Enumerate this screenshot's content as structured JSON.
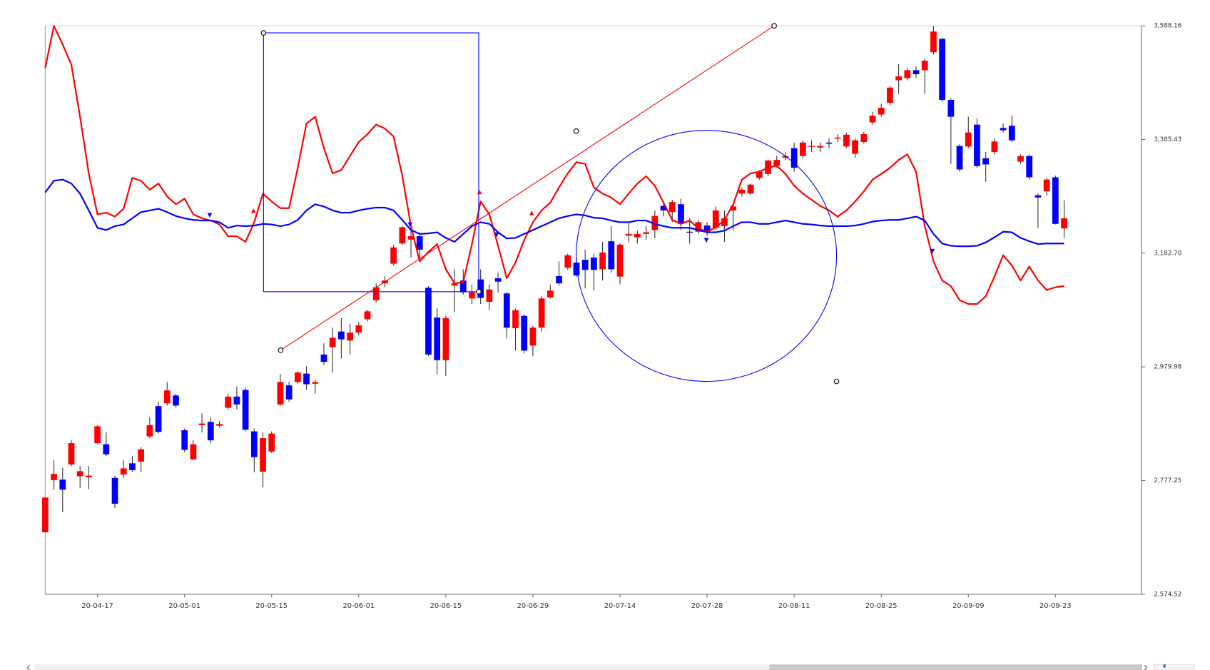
{
  "chart_data": {
    "type": "candlestick",
    "up_color": "#ff0000",
    "down_color": "#0000ff",
    "categories": [
      null,
      null,
      null,
      null,
      null,
      null,
      "20-04-17",
      null,
      null,
      null,
      null,
      null,
      null,
      null,
      null,
      null,
      "20-05-01",
      null,
      null,
      null,
      null,
      null,
      null,
      null,
      null,
      null,
      "20-05-15",
      null,
      null,
      null,
      null,
      null,
      null,
      null,
      null,
      null,
      "20-06-01",
      null,
      null,
      null,
      null,
      null,
      null,
      null,
      null,
      null,
      "20-06-15",
      null,
      null,
      null,
      null,
      null,
      null,
      null,
      null,
      null,
      "20-06-29",
      null,
      null,
      null,
      null,
      null,
      null,
      null,
      null,
      null,
      "20-07-14",
      null,
      null,
      null,
      null,
      null,
      null,
      null,
      null,
      null,
      "20-07-28",
      null,
      null,
      null,
      null,
      null,
      null,
      null,
      null,
      null,
      "20-08-11",
      null,
      null,
      null,
      null,
      null,
      null,
      null,
      null,
      null,
      "20-08-25",
      null,
      null,
      null,
      null,
      null,
      null,
      null,
      null,
      null,
      "20-09-09",
      null,
      null,
      null,
      null,
      null,
      null,
      null,
      null,
      null,
      "20-09-23",
      null
    ],
    "open": [
      2685,
      2778,
      2779,
      2806,
      2785,
      2783,
      2844,
      2842,
      2782,
      2788,
      2808,
      2811,
      2856,
      2910,
      2915,
      2929,
      2867,
      2815,
      2876,
      2882,
      2875,
      2907,
      2927,
      2939,
      2865,
      2793,
      2829,
      2913,
      2947,
      2953,
      2968,
      2950,
      3002,
      3015,
      3043,
      3027,
      3041,
      3065,
      3099,
      3129,
      3164,
      3200,
      3207,
      3213,
      3121,
      3068,
      2992,
      3125,
      3134,
      3102,
      3136,
      3096,
      3138,
      3111,
      3049,
      3071,
      3018,
      3050,
      3104,
      3142,
      3157,
      3166,
      3171,
      3175,
      3154,
      3204,
      3141,
      3214,
      3211,
      3217,
      3224,
      3267,
      3256,
      3270,
      3221,
      3221,
      3232,
      3228,
      3231,
      3259,
      3289,
      3289,
      3317,
      3324,
      3339,
      3353,
      3370,
      3356,
      3373,
      3371,
      3380,
      3387,
      3373,
      3360,
      3381,
      3416,
      3430,
      3451,
      3491,
      3495,
      3509,
      3509,
      3541,
      3565,
      3456,
      3374,
      3373,
      3412,
      3352,
      3363,
      3406,
      3410,
      3346,
      3356,
      3286,
      3293,
      3318,
      3227
    ],
    "high": [
      2747,
      2814,
      2800,
      2849,
      2803,
      2803,
      2876,
      2863,
      2786,
      2814,
      2821,
      2837,
      2890,
      2918,
      2953,
      2932,
      2870,
      2849,
      2897,
      2890,
      2883,
      2932,
      2945,
      2943,
      2870,
      2863,
      2865,
      2967,
      2953,
      2972,
      2981,
      2957,
      3022,
      3050,
      3067,
      3057,
      3060,
      3082,
      3129,
      3141,
      3198,
      3232,
      3231,
      3220,
      3124,
      3085,
      3071,
      3154,
      3154,
      3127,
      3154,
      3127,
      3148,
      3114,
      3084,
      3074,
      3053,
      3106,
      3127,
      3168,
      3182,
      3175,
      3189,
      3182,
      3203,
      3231,
      3200,
      3238,
      3223,
      3231,
      3259,
      3275,
      3278,
      3280,
      3245,
      3242,
      3238,
      3266,
      3259,
      3270,
      3300,
      3307,
      3331,
      3350,
      3356,
      3363,
      3380,
      3384,
      3384,
      3380,
      3387,
      3395,
      3398,
      3388,
      3399,
      3435,
      3449,
      3481,
      3520,
      3513,
      3516,
      3530,
      3588,
      3567,
      3459,
      3377,
      3426,
      3423,
      3363,
      3387,
      3414,
      3428,
      3359,
      3359,
      3289,
      3317,
      3321,
      3277
    ],
    "low": [
      2685,
      2761,
      2721,
      2803,
      2764,
      2762,
      2842,
      2821,
      2728,
      2782,
      2793,
      2793,
      2853,
      2861,
      2911,
      2908,
      2828,
      2814,
      2863,
      2844,
      2872,
      2904,
      2904,
      2865,
      2792,
      2765,
      2826,
      2911,
      2918,
      2950,
      2939,
      2932,
      2983,
      2970,
      2995,
      3002,
      3036,
      3061,
      3095,
      3122,
      3161,
      3198,
      3175,
      3171,
      2999,
      2967,
      2964,
      3078,
      3109,
      3092,
      3092,
      3081,
      3113,
      3031,
      3009,
      3004,
      2999,
      3043,
      3102,
      3125,
      3153,
      3141,
      3120,
      3116,
      3134,
      3148,
      3127,
      3203,
      3200,
      3206,
      3210,
      3248,
      3238,
      3224,
      3200,
      3217,
      3213,
      3224,
      3203,
      3224,
      3284,
      3286,
      3314,
      3320,
      3335,
      3349,
      3328,
      3352,
      3363,
      3363,
      3370,
      3381,
      3370,
      3353,
      3378,
      3412,
      3426,
      3446,
      3467,
      3491,
      3495,
      3467,
      3537,
      3453,
      3342,
      3328,
      3370,
      3335,
      3310,
      3359,
      3398,
      3381,
      3342,
      3314,
      3228,
      3286,
      3234,
      3210
    ],
    "close": [
      2747,
      2789,
      2761,
      2844,
      2794,
      2786,
      2874,
      2824,
      2736,
      2799,
      2796,
      2833,
      2876,
      2864,
      2938,
      2911,
      2832,
      2842,
      2879,
      2849,
      2878,
      2927,
      2913,
      2868,
      2819,
      2853,
      2861,
      2953,
      2922,
      2970,
      2949,
      2953,
      2989,
      3032,
      3029,
      3041,
      3054,
      3079,
      3122,
      3134,
      3193,
      3229,
      3213,
      3189,
      3002,
      2992,
      3067,
      3129,
      3113,
      3113,
      3103,
      3118,
      3132,
      3050,
      3081,
      3009,
      3050,
      3102,
      3116,
      3129,
      3179,
      3143,
      3153,
      3153,
      3184,
      3154,
      3198,
      3217,
      3217,
      3220,
      3249,
      3259,
      3274,
      3235,
      3220,
      3238,
      3221,
      3259,
      3245,
      3266,
      3296,
      3305,
      3328,
      3348,
      3349,
      3356,
      3335,
      3380,
      3374,
      3374,
      3378,
      3389,
      3394,
      3384,
      3395,
      3428,
      3442,
      3478,
      3498,
      3509,
      3502,
      3526,
      3578,
      3456,
      3426,
      3332,
      3398,
      3338,
      3341,
      3382,
      3402,
      3384,
      3356,
      3318,
      3282,
      3314,
      3235,
      3245
    ],
    "overlays": [
      {
        "color": "#ff0000",
        "values": [
          3513,
          3588,
          3555,
          3519,
          3426,
          3325,
          3252,
          3255,
          3248,
          3262,
          3317,
          3312,
          3296,
          3307,
          3284,
          3270,
          3280,
          3252,
          3245,
          3241,
          3234,
          3213,
          3213,
          3203,
          3238,
          3289,
          3275,
          3263,
          3263,
          3335,
          3414,
          3426,
          3370,
          3325,
          3331,
          3356,
          3381,
          3395,
          3412,
          3405,
          3391,
          3321,
          3231,
          3168,
          3185,
          3199,
          3154,
          3129,
          3131,
          3199,
          3275,
          3252,
          3196,
          3138,
          3166,
          3206,
          3238,
          3259,
          3273,
          3300,
          3325,
          3345,
          3342,
          3300,
          3289,
          3282,
          3270,
          3289,
          3307,
          3320,
          3303,
          3273,
          3242,
          3235,
          3241,
          3227,
          3221,
          3229,
          3242,
          3270,
          3314,
          3325,
          3328,
          3335,
          3339,
          3324,
          3303,
          3289,
          3278,
          3267,
          3259,
          3248,
          3259,
          3275,
          3293,
          3314,
          3324,
          3335,
          3349,
          3359,
          3328,
          3231,
          3168,
          3134,
          3124,
          3099,
          3092,
          3092,
          3106,
          3141,
          3179,
          3161,
          3134,
          3159,
          3134,
          3117,
          3122,
          3124
        ]
      },
      {
        "color": "#0000ff",
        "values": [
          3291,
          3312,
          3314,
          3307,
          3289,
          3259,
          3228,
          3224,
          3231,
          3234,
          3245,
          3256,
          3259,
          3262,
          3256,
          3249,
          3245,
          3242,
          3241,
          3241,
          3238,
          3228,
          3232,
          3231,
          3232,
          3235,
          3234,
          3231,
          3234,
          3242,
          3259,
          3270,
          3266,
          3259,
          3255,
          3255,
          3259,
          3262,
          3264,
          3264,
          3259,
          3242,
          3224,
          3217,
          3218,
          3220,
          3210,
          3203,
          3217,
          3231,
          3238,
          3235,
          3220,
          3209,
          3210,
          3217,
          3224,
          3231,
          3238,
          3245,
          3249,
          3252,
          3250,
          3246,
          3245,
          3241,
          3238,
          3238,
          3241,
          3241,
          3235,
          3231,
          3228,
          3228,
          3228,
          3224,
          3220,
          3220,
          3223,
          3231,
          3238,
          3238,
          3235,
          3235,
          3238,
          3241,
          3238,
          3235,
          3234,
          3232,
          3231,
          3231,
          3231,
          3232,
          3235,
          3239,
          3241,
          3242,
          3242,
          3245,
          3248,
          3241,
          3217,
          3200,
          3196,
          3195,
          3195,
          3196,
          3202,
          3211,
          3221,
          3220,
          3210,
          3204,
          3199,
          3200,
          3200,
          3200
        ]
      }
    ],
    "ylim": [
      2574.52,
      3588.16
    ],
    "yticks": [
      {
        "value": 2574.52,
        "label": "2,574.52"
      },
      {
        "value": 2777.25,
        "label": "2,777.25"
      },
      {
        "value": 2979.98,
        "label": "2,979.98"
      },
      {
        "value": 3182.7,
        "label": "3,182.70"
      },
      {
        "value": 3385.43,
        "label": "3,385.43"
      },
      {
        "value": 3588.16,
        "label": "3,588.16"
      }
    ],
    "grid": false
  }
}
